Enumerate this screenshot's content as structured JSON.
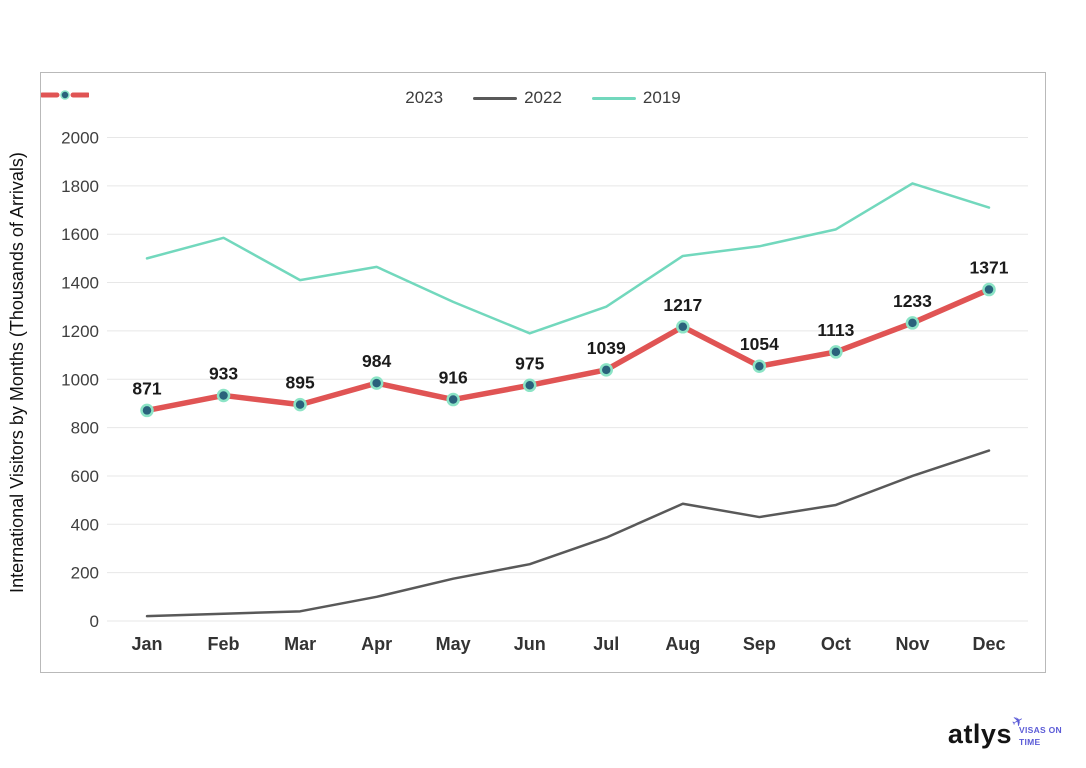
{
  "chart_data": {
    "type": "line",
    "title": "",
    "xlabel": "",
    "ylabel": "International Visitors by Months (Thousands of Arrivals)",
    "categories": [
      "Jan",
      "Feb",
      "Mar",
      "Apr",
      "May",
      "Jun",
      "Jul",
      "Aug",
      "Sep",
      "Oct",
      "Nov",
      "Dec"
    ],
    "ylim": [
      0,
      2000
    ],
    "ytick_step": 200,
    "grid": "horizontal",
    "legend_position": "top-center",
    "series": [
      {
        "name": "2023",
        "color": "#e05454",
        "line_width": 5.5,
        "marker_fill": "#2a627c",
        "marker_ring": "#8ce4c6",
        "show_data_labels": true,
        "values": [
          871,
          933,
          895,
          984,
          916,
          975,
          1039,
          1217,
          1054,
          1113,
          1233,
          1371
        ]
      },
      {
        "name": "2022",
        "color": "#595959",
        "line_width": 2.5,
        "show_data_labels": false,
        "values": [
          20,
          30,
          40,
          100,
          175,
          235,
          345,
          485,
          430,
          480,
          600,
          705
        ]
      },
      {
        "name": "2019",
        "color": "#72d8bd",
        "line_width": 2.5,
        "show_data_labels": false,
        "values": [
          1500,
          1585,
          1410,
          1465,
          1320,
          1190,
          1300,
          1510,
          1550,
          1620,
          1810,
          1710
        ]
      }
    ],
    "axis_colors": {
      "tick_label": "#3f3f3f",
      "month_label": "#333333",
      "data_label": "#1b1b1b",
      "gridline": "#e7e7e7",
      "border": "#b9b9b9"
    }
  },
  "logo": {
    "brand": "atlys",
    "tagline_line1": "VISAS ON",
    "tagline_line2": "TIME",
    "accent_color": "#5b5bd7"
  }
}
